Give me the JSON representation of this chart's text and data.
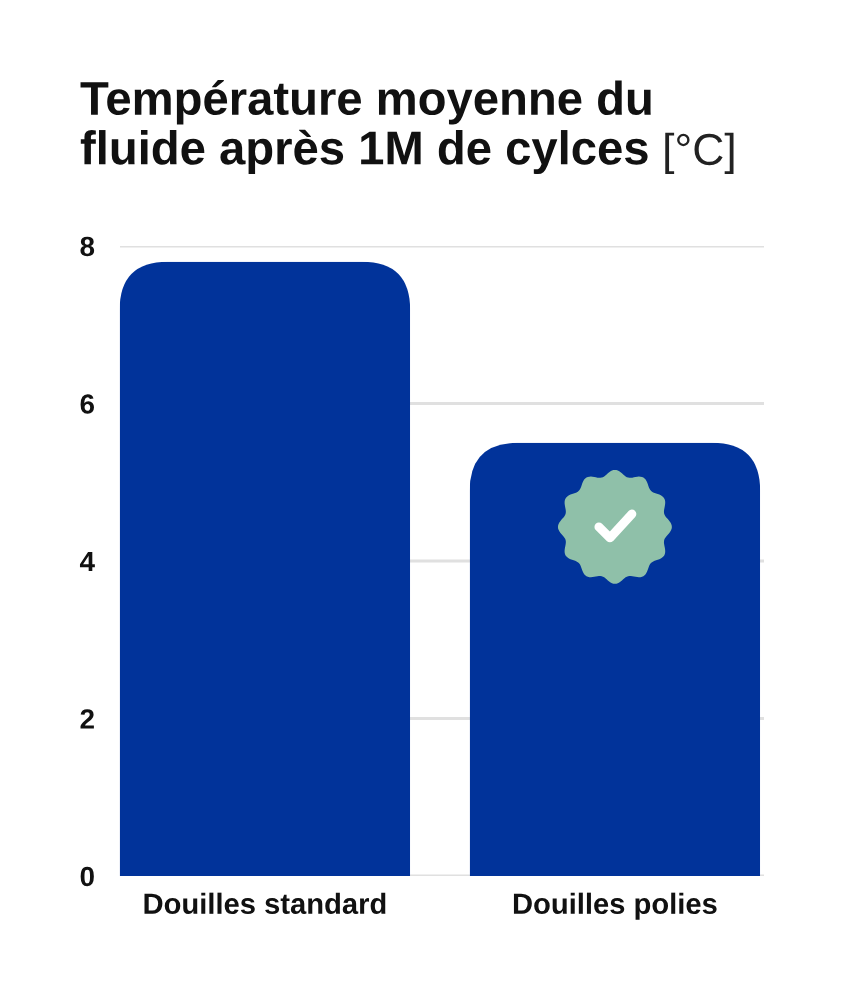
{
  "chart_data": {
    "type": "bar",
    "title": "Température moyenne du fluide après 1M de cylces",
    "ylabel": "[°C]",
    "categories": [
      "Douilles standard",
      "Douilles polies"
    ],
    "values": [
      7.8,
      5.5
    ],
    "color": "#01339a",
    "ylim": [
      0,
      8
    ],
    "yticks": [
      0,
      2,
      4,
      6,
      8
    ],
    "grid": "y"
  }
}
